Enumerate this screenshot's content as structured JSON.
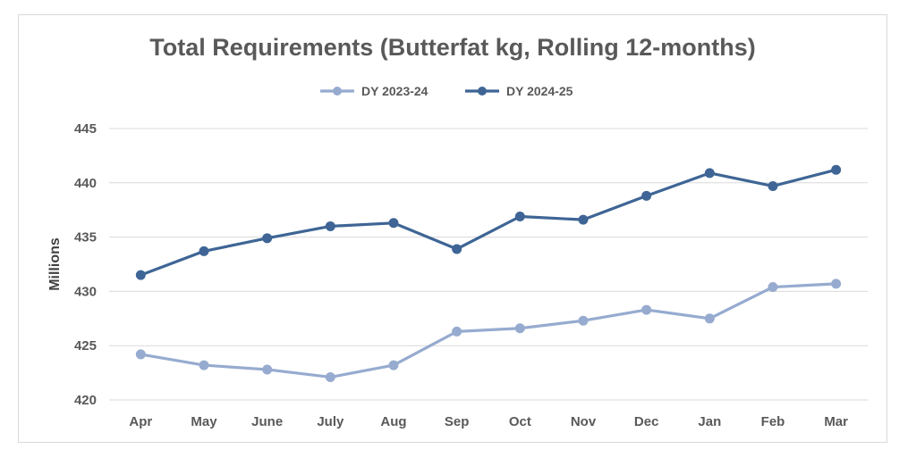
{
  "chart_data": {
    "type": "line",
    "title": "Total Requirements (Butterfat kg, Rolling 12-months)",
    "ylabel": "Millions",
    "xlabel": "",
    "categories": [
      "Apr",
      "May",
      "June",
      "July",
      "Aug",
      "Sep",
      "Oct",
      "Nov",
      "Dec",
      "Jan",
      "Feb",
      "Mar"
    ],
    "ylim": [
      420,
      445
    ],
    "yticks": [
      420,
      425,
      430,
      435,
      440,
      445
    ],
    "grid": true,
    "legend_position": "top",
    "series": [
      {
        "name": "DY 2023-24",
        "color": "#96abcf",
        "values": [
          424.2,
          423.2,
          422.8,
          422.1,
          423.2,
          426.3,
          426.6,
          427.3,
          428.3,
          427.5,
          430.4,
          430.7
        ]
      },
      {
        "name": "DY 2024-25",
        "color": "#3e6595",
        "values": [
          431.5,
          433.7,
          434.9,
          436.0,
          436.3,
          433.9,
          436.9,
          436.6,
          438.8,
          440.9,
          439.7,
          441.2
        ]
      }
    ]
  }
}
